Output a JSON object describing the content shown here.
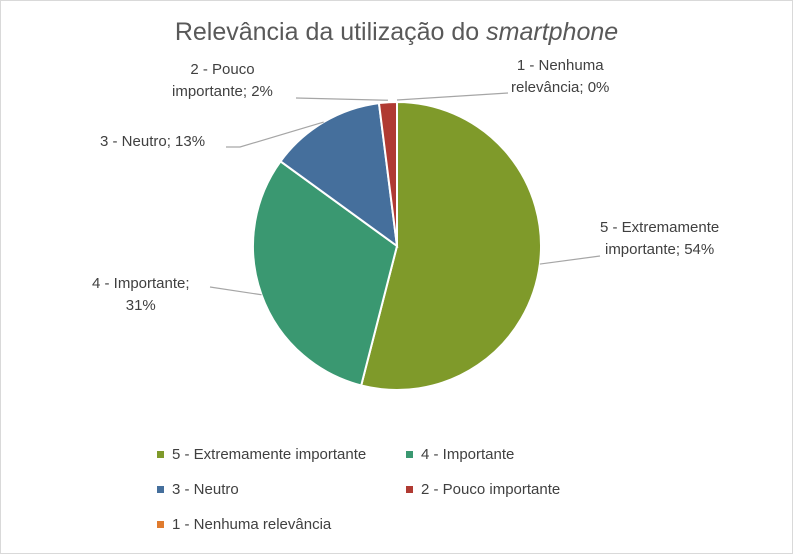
{
  "chart_data": {
    "type": "pie",
    "title": "Relevância da utilização do",
    "title_italic": "smartphone",
    "slices": [
      {
        "name": "5 - Extremamente importante",
        "value": 54,
        "label": "5 - Extremamente importante; 54%",
        "color": "#7f9a2a"
      },
      {
        "name": "4 - Importante",
        "value": 31,
        "label": "4 - Importante; 31%",
        "color": "#3a9871"
      },
      {
        "name": "3 - Neutro",
        "value": 13,
        "label": "3 - Neutro; 13%",
        "color": "#456f9c"
      },
      {
        "name": "2 - Pouco importante",
        "value": 2,
        "label": "2 - Pouco importante; 2%",
        "color": "#b03a32"
      },
      {
        "name": "1 - Nenhuma relevância",
        "value": 0,
        "label": "1 - Nenhuma relevância; 0%",
        "color": "#e07b2e"
      }
    ],
    "labels_display": {
      "s5": [
        "5 - Extremamente",
        "importante; 54%"
      ],
      "s4": [
        "4 - Importante;",
        "31%"
      ],
      "s3": [
        "3 - Neutro; 13%"
      ],
      "s2": [
        "2 - Pouco",
        "importante; 2%"
      ],
      "s1": [
        "1 - Nenhuma",
        "relevância; 0%"
      ]
    },
    "legend_placement": "bottom"
  }
}
